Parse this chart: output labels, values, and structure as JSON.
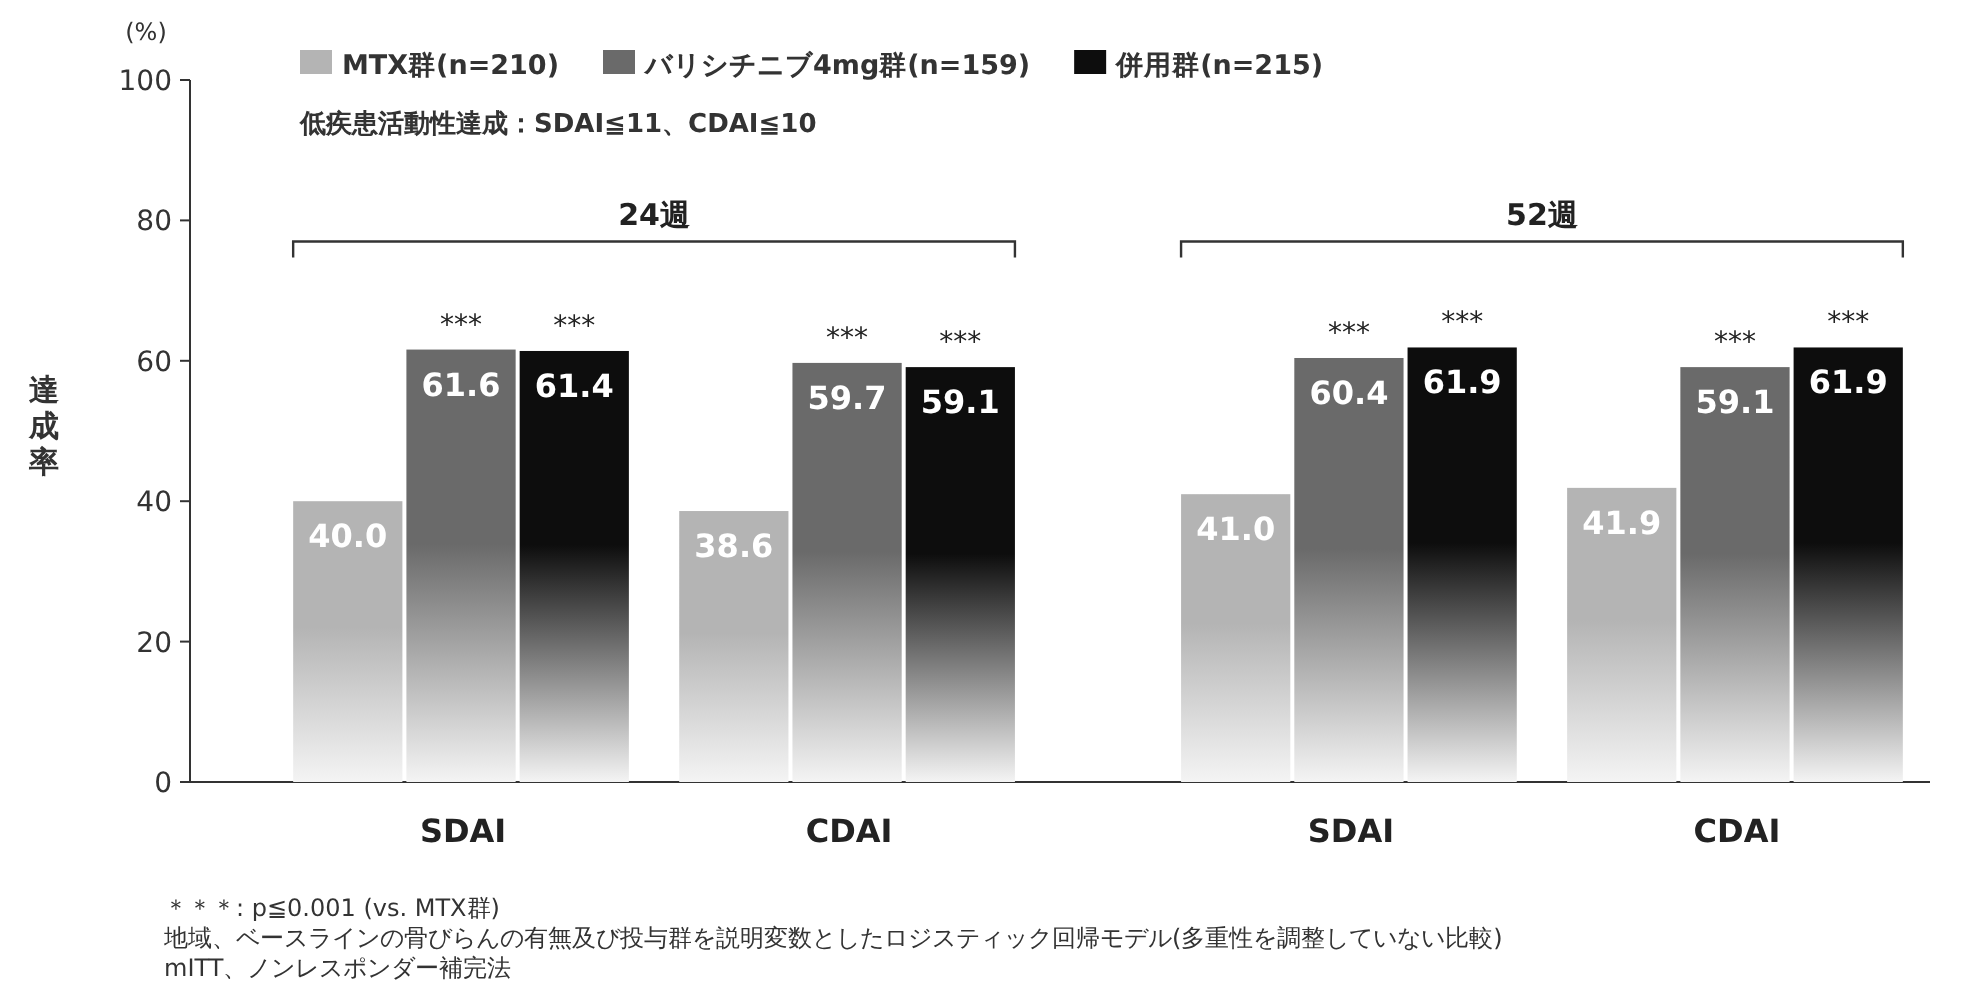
{
  "chart_data": {
    "type": "bar",
    "subtitle": "低疾患活動性達成：SDAI≦11、CDAI≦10",
    "ylabel": "達成率",
    "categories": [
      "SDAI",
      "CDAI",
      "SDAI",
      "CDAI"
    ],
    "series": [
      {
        "name": "MTX群(n=210)",
        "color": "#b4b4b4",
        "values": [
          40.0,
          38.6,
          41.0,
          41.9
        ],
        "value_labels": [
          "40.0",
          "38.6",
          "41.0",
          "41.9"
        ]
      },
      {
        "name": "バリシチニブ4mg群(n=159)",
        "color": "#6a6a6a",
        "values": [
          61.6,
          59.7,
          60.4,
          59.1
        ],
        "value_labels": [
          "61.6",
          "59.7",
          "60.4",
          "59.1"
        ]
      },
      {
        "name": "併用群(n=215)",
        "color": "#0d0d0d",
        "values": [
          61.4,
          59.1,
          61.9,
          61.9
        ],
        "value_labels": [
          "61.4",
          "59.1",
          "61.9",
          "61.9"
        ]
      }
    ],
    "ylim": [
      0,
      100
    ],
    "yticks": [
      0,
      20,
      40,
      60,
      80,
      100
    ],
    "grid": false,
    "legend": "top left",
    "annotations": [
      "(%)",
      "24週",
      "52週",
      "***",
      "***",
      "***",
      "***",
      "***",
      "***",
      "***",
      "***",
      "＊＊＊: p≦0.001 (vs. MTX群)",
      "地域、ベースラインの骨びらんの有無及び投与群を説明変数としたロジスティック回帰モデル(多重性を調整していない比較)",
      "mITT、ノンレスポンダー補完法"
    ]
  }
}
